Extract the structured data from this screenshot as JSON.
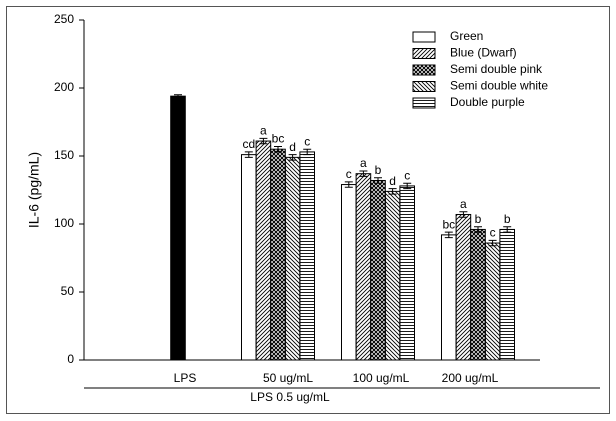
{
  "chart_data": {
    "type": "bar",
    "y_label": "IL-6 (pg/mL)",
    "group_label": "LPS 0.5 ug/mL",
    "categories": [
      "LPS",
      "50 ug/mL",
      "100 ug/mL",
      "200 ug/mL"
    ],
    "control": {
      "value": 194,
      "error": 1,
      "color": "#000000"
    },
    "series": [
      {
        "name": "Green",
        "color": "#ffffff",
        "pattern": "none",
        "values": [
          null,
          151,
          129,
          92
        ],
        "errors": [
          null,
          2,
          2,
          2
        ],
        "letters": [
          null,
          "cd",
          "c",
          "bc"
        ]
      },
      {
        "name": "Blue (Dwarf)",
        "color": "#ffffff",
        "pattern": "diagonal",
        "values": [
          null,
          161,
          137,
          107
        ],
        "errors": [
          null,
          2,
          2,
          2
        ],
        "letters": [
          null,
          "a",
          "a",
          "a"
        ]
      },
      {
        "name": "Semi double pink",
        "color": "#ffffff",
        "pattern": "crosshatch",
        "values": [
          null,
          155,
          132,
          96
        ],
        "errors": [
          null,
          2,
          2,
          2
        ],
        "letters": [
          null,
          "bc",
          "b",
          "b"
        ]
      },
      {
        "name": "Semi double white",
        "color": "#ffffff",
        "pattern": "backdiagonal",
        "values": [
          null,
          149,
          124,
          86
        ],
        "errors": [
          null,
          2,
          2,
          2
        ],
        "letters": [
          null,
          "d",
          "d",
          "c"
        ]
      },
      {
        "name": "Double purple",
        "color": "#ffffff",
        "pattern": "horizontal",
        "values": [
          null,
          153,
          128,
          96
        ],
        "errors": [
          null,
          2,
          2,
          2
        ],
        "letters": [
          null,
          "c",
          "c",
          "b"
        ]
      }
    ],
    "ylim": [
      0,
      250
    ],
    "yticks": [
      0,
      50,
      100,
      150,
      200,
      250
    ],
    "legend": "upper right"
  }
}
